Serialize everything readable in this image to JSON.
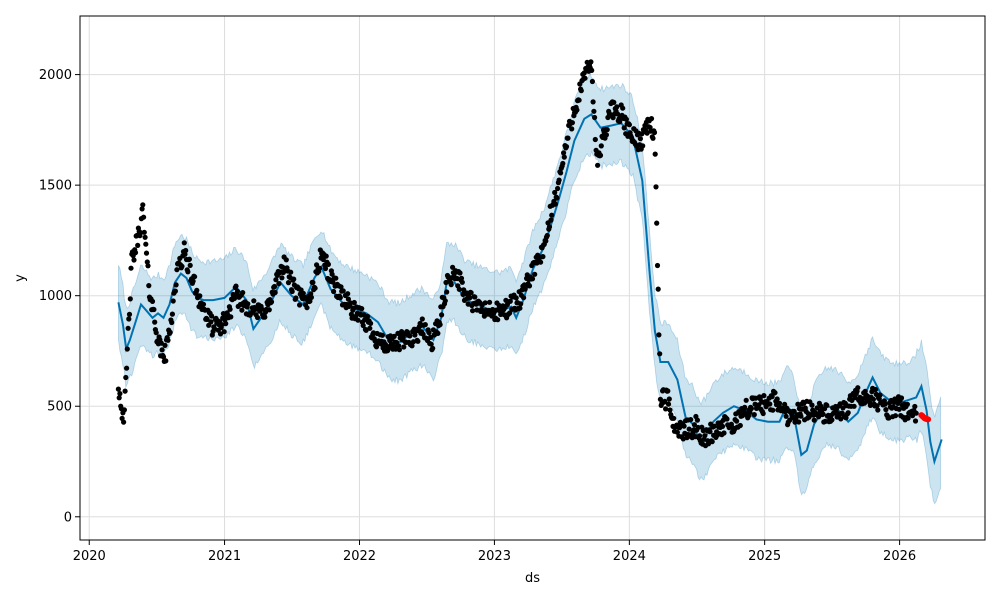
{
  "chart_data": {
    "type": "scatter",
    "title": "",
    "xlabel": "ds",
    "ylabel": "y",
    "xlim": [
      "2019-12-07",
      "2026-08-20"
    ],
    "ylim": [
      -105,
      2265
    ],
    "grid": true,
    "x_ticks": [
      "2020-01-01",
      "2021-01-01",
      "2022-01-01",
      "2023-01-01",
      "2024-01-01",
      "2025-01-01",
      "2026-01-01"
    ],
    "x_tick_labels": [
      "2020",
      "2021",
      "2022",
      "2023",
      "2024",
      "2025",
      "2026"
    ],
    "y_ticks": [
      0,
      500,
      1000,
      1500,
      2000
    ],
    "y_tick_labels": [
      "0",
      "500",
      "1000",
      "1500",
      "2000"
    ],
    "colors": {
      "observed": "#000000",
      "forecast_line": "#0072B2",
      "uncertainty_band": "#0072B2",
      "recent_actuals": "#ff0000",
      "grid": "#dddddd"
    },
    "observed_trend": [
      [
        "2020-03-20",
        600
      ],
      [
        "2020-03-28",
        500
      ],
      [
        "2020-04-05",
        450
      ],
      [
        "2020-04-15",
        820
      ],
      [
        "2020-04-25",
        1150
      ],
      [
        "2020-05-10",
        1250
      ],
      [
        "2020-05-25",
        1380
      ],
      [
        "2020-06-10",
        1050
      ],
      [
        "2020-06-25",
        900
      ],
      [
        "2020-07-10",
        760
      ],
      [
        "2020-07-25",
        730
      ],
      [
        "2020-08-10",
        900
      ],
      [
        "2020-08-25",
        1100
      ],
      [
        "2020-09-15",
        1200
      ],
      [
        "2020-10-05",
        1080
      ],
      [
        "2020-10-25",
        990
      ],
      [
        "2020-11-15",
        900
      ],
      [
        "2020-12-05",
        850
      ],
      [
        "2021-01-01",
        880
      ],
      [
        "2021-02-01",
        1000
      ],
      [
        "2021-03-01",
        960
      ],
      [
        "2021-04-01",
        920
      ],
      [
        "2021-05-01",
        950
      ],
      [
        "2021-06-10",
        1150
      ],
      [
        "2021-07-10",
        1020
      ],
      [
        "2021-08-10",
        960
      ],
      [
        "2021-09-05",
        1080
      ],
      [
        "2021-09-20",
        1200
      ],
      [
        "2021-10-15",
        1080
      ],
      [
        "2021-11-15",
        1000
      ],
      [
        "2021-12-20",
        920
      ],
      [
        "2022-01-20",
        880
      ],
      [
        "2022-02-20",
        800
      ],
      [
        "2022-03-20",
        770
      ],
      [
        "2022-04-20",
        790
      ],
      [
        "2022-05-20",
        810
      ],
      [
        "2022-06-20",
        850
      ],
      [
        "2022-07-15",
        790
      ],
      [
        "2022-08-05",
        880
      ],
      [
        "2022-08-25",
        1050
      ],
      [
        "2022-09-15",
        1120
      ],
      [
        "2022-10-15",
        1000
      ],
      [
        "2022-11-15",
        950
      ],
      [
        "2022-12-15",
        930
      ],
      [
        "2023-01-15",
        920
      ],
      [
        "2023-02-15",
        960
      ],
      [
        "2023-03-15",
        980
      ],
      [
        "2023-04-15",
        1120
      ],
      [
        "2023-05-15",
        1200
      ],
      [
        "2023-06-01",
        1360
      ],
      [
        "2023-06-20",
        1480
      ],
      [
        "2023-07-10",
        1650
      ],
      [
        "2023-08-01",
        1820
      ],
      [
        "2023-08-25",
        1950
      ],
      [
        "2023-09-20",
        2060
      ],
      [
        "2023-10-05",
        1600
      ],
      [
        "2023-10-25",
        1720
      ],
      [
        "2023-11-15",
        1850
      ],
      [
        "2023-12-10",
        1820
      ],
      [
        "2024-01-05",
        1720
      ],
      [
        "2024-02-01",
        1700
      ],
      [
        "2024-02-25",
        1800
      ],
      [
        "2024-03-10",
        1700
      ],
      [
        "2024-03-25",
        540
      ],
      [
        "2024-04-15",
        525
      ],
      [
        "2024-05-05",
        400
      ],
      [
        "2024-06-01",
        390
      ],
      [
        "2024-07-01",
        410
      ],
      [
        "2024-07-20",
        350
      ],
      [
        "2024-08-10",
        380
      ],
      [
        "2024-09-10",
        410
      ],
      [
        "2024-10-10",
        410
      ],
      [
        "2024-11-05",
        480
      ],
      [
        "2024-12-01",
        500
      ],
      [
        "2025-01-01",
        510
      ],
      [
        "2025-02-01",
        530
      ],
      [
        "2025-03-01",
        460
      ],
      [
        "2025-04-01",
        470
      ],
      [
        "2025-05-01",
        490
      ],
      [
        "2025-06-01",
        470
      ],
      [
        "2025-07-01",
        455
      ],
      [
        "2025-08-01",
        470
      ],
      [
        "2025-09-01",
        535
      ],
      [
        "2025-10-01",
        550
      ],
      [
        "2025-11-01",
        530
      ],
      [
        "2025-12-01",
        480
      ],
      [
        "2026-01-01",
        500
      ],
      [
        "2026-02-15",
        450
      ]
    ],
    "recent_actuals": [
      [
        "2026-03-01",
        460
      ],
      [
        "2026-03-10",
        445
      ],
      [
        "2026-03-20",
        440
      ]
    ],
    "forecast": [
      [
        "2020-03-20",
        970
      ],
      [
        "2020-04-01",
        870
      ],
      [
        "2020-04-10",
        760
      ],
      [
        "2020-04-20",
        800
      ],
      [
        "2020-05-05",
        880
      ],
      [
        "2020-05-20",
        960
      ],
      [
        "2020-06-05",
        930
      ],
      [
        "2020-06-20",
        900
      ],
      [
        "2020-07-05",
        920
      ],
      [
        "2020-07-20",
        900
      ],
      [
        "2020-08-05",
        960
      ],
      [
        "2020-08-20",
        1060
      ],
      [
        "2020-09-05",
        1100
      ],
      [
        "2020-09-20",
        1080
      ],
      [
        "2020-10-05",
        1020
      ],
      [
        "2020-10-20",
        990
      ],
      [
        "2020-11-05",
        980
      ],
      [
        "2020-12-01",
        980
      ],
      [
        "2021-01-01",
        990
      ],
      [
        "2021-02-01",
        1040
      ],
      [
        "2021-03-01",
        980
      ],
      [
        "2021-03-20",
        850
      ],
      [
        "2021-04-10",
        900
      ],
      [
        "2021-05-01",
        950
      ],
      [
        "2021-06-01",
        1060
      ],
      [
        "2021-07-01",
        1000
      ],
      [
        "2021-08-01",
        960
      ],
      [
        "2021-09-01",
        1080
      ],
      [
        "2021-09-20",
        1130
      ],
      [
        "2021-10-15",
        1030
      ],
      [
        "2021-11-15",
        970
      ],
      [
        "2021-12-20",
        940
      ],
      [
        "2022-01-20",
        920
      ],
      [
        "2022-02-20",
        880
      ],
      [
        "2022-03-20",
        800
      ],
      [
        "2022-04-20",
        790
      ],
      [
        "2022-05-20",
        830
      ],
      [
        "2022-06-20",
        860
      ],
      [
        "2022-07-20",
        800
      ],
      [
        "2022-08-10",
        900
      ],
      [
        "2022-08-25",
        1060
      ],
      [
        "2022-09-15",
        1060
      ],
      [
        "2022-10-15",
        980
      ],
      [
        "2022-11-15",
        960
      ],
      [
        "2022-12-15",
        940
      ],
      [
        "2023-01-15",
        930
      ],
      [
        "2023-02-15",
        950
      ],
      [
        "2023-03-01",
        900
      ],
      [
        "2023-03-20",
        980
      ],
      [
        "2023-04-15",
        1120
      ],
      [
        "2023-05-15",
        1220
      ],
      [
        "2023-06-05",
        1330
      ],
      [
        "2023-06-25",
        1440
      ],
      [
        "2023-07-15",
        1560
      ],
      [
        "2023-08-05",
        1700
      ],
      [
        "2023-09-01",
        1800
      ],
      [
        "2023-09-20",
        1820
      ],
      [
        "2023-10-15",
        1760
      ],
      [
        "2023-11-15",
        1770
      ],
      [
        "2023-12-10",
        1780
      ],
      [
        "2024-01-10",
        1720
      ],
      [
        "2024-02-05",
        1520
      ],
      [
        "2024-02-25",
        1100
      ],
      [
        "2024-03-10",
        840
      ],
      [
        "2024-03-25",
        700
      ],
      [
        "2024-04-15",
        700
      ],
      [
        "2024-05-10",
        620
      ],
      [
        "2024-06-01",
        450
      ],
      [
        "2024-06-20",
        420
      ],
      [
        "2024-07-10",
        340
      ],
      [
        "2024-07-25",
        360
      ],
      [
        "2024-08-15",
        430
      ],
      [
        "2024-09-10",
        470
      ],
      [
        "2024-10-10",
        500
      ],
      [
        "2024-11-10",
        480
      ],
      [
        "2024-12-10",
        440
      ],
      [
        "2025-01-10",
        430
      ],
      [
        "2025-02-10",
        430
      ],
      [
        "2025-03-01",
        500
      ],
      [
        "2025-03-20",
        470
      ],
      [
        "2025-04-10",
        280
      ],
      [
        "2025-04-25",
        300
      ],
      [
        "2025-05-15",
        420
      ],
      [
        "2025-06-15",
        500
      ],
      [
        "2025-07-15",
        490
      ],
      [
        "2025-08-15",
        430
      ],
      [
        "2025-09-10",
        470
      ],
      [
        "2025-10-01",
        560
      ],
      [
        "2025-10-20",
        630
      ],
      [
        "2025-11-10",
        560
      ],
      [
        "2025-12-10",
        520
      ],
      [
        "2026-01-10",
        520
      ],
      [
        "2026-02-15",
        540
      ],
      [
        "2026-03-01",
        590
      ],
      [
        "2026-03-15",
        480
      ],
      [
        "2026-03-25",
        340
      ],
      [
        "2026-04-05",
        250
      ],
      [
        "2026-04-15",
        300
      ],
      [
        "2026-04-25",
        350
      ]
    ],
    "forecast_band_halfwidth": 175,
    "forecast_band_wide_start": "2026-02-15",
    "forecast_band_wide_halfwidth": 200
  }
}
